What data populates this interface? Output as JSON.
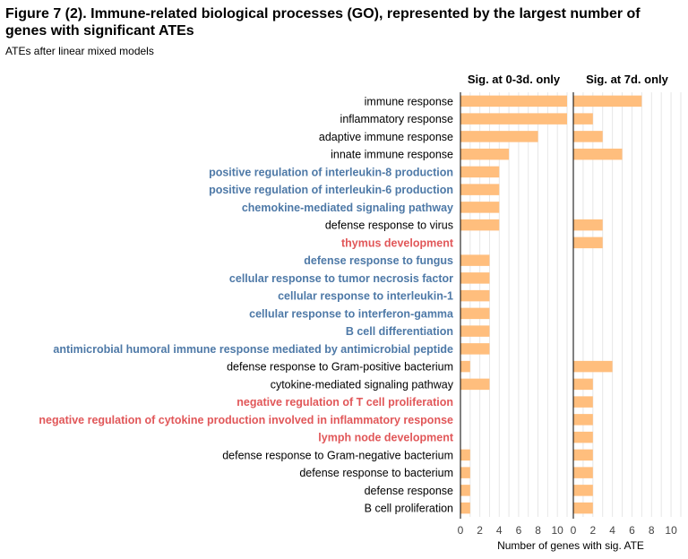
{
  "title": "Figure 7 (2). Immune-related biological processes (GO), represented by the largest number of genes with significant ATEs",
  "subtitle": "ATEs after linear mixed models",
  "chart_data": {
    "type": "bar",
    "orientation": "horizontal",
    "categories": [
      "immune response",
      "inflammatory response",
      "adaptive immune response",
      "innate immune response",
      "positive regulation of interleukin-8 production",
      "positive regulation of interleukin-6 production",
      "chemokine-mediated signaling pathway",
      "defense response to virus",
      "thymus development",
      "defense response to fungus",
      "cellular response to tumor necrosis factor",
      "cellular response to interleukin-1",
      "cellular response to interferon-gamma",
      "B cell differentiation",
      "antimicrobial humoral immune response mediated by antimicrobial peptide",
      "defense response to Gram-positive bacterium",
      "cytokine-mediated signaling pathway",
      "negative regulation of T cell proliferation",
      "negative regulation of cytokine production involved in inflammatory response",
      "lymph node development",
      "defense response to Gram-negative bacterium",
      "defense response to bacterium",
      "defense response",
      "B cell proliferation"
    ],
    "category_styles": [
      "normal",
      "normal",
      "normal",
      "normal",
      "blue",
      "blue",
      "blue",
      "normal",
      "red",
      "blue",
      "blue",
      "blue",
      "blue",
      "blue",
      "blue",
      "normal",
      "normal",
      "red",
      "red",
      "red",
      "normal",
      "normal",
      "normal",
      "normal"
    ],
    "series": [
      {
        "name": "Sig. at 0-3d. only",
        "values": [
          11,
          11,
          8,
          5,
          4,
          4,
          4,
          4,
          0,
          3,
          3,
          3,
          3,
          3,
          3,
          1,
          3,
          0,
          0,
          0,
          1,
          1,
          1,
          1
        ]
      },
      {
        "name": "Sig. at 7d. only",
        "values": [
          7,
          2,
          3,
          5,
          0,
          0,
          0,
          3,
          3,
          0,
          0,
          0,
          0,
          0,
          0,
          4,
          2,
          2,
          2,
          2,
          2,
          2,
          2,
          2
        ]
      }
    ],
    "xlabel": "Number of genes with sig. ATE",
    "ylabel": "",
    "xlim": [
      0,
      11
    ],
    "xticks": [
      0,
      2,
      4,
      6,
      8,
      10
    ],
    "grid": true,
    "bar_color": "#ffbe7d",
    "grid_color": "#e6e6e6",
    "label_colors": {
      "normal": "#000000",
      "blue": "#4e79a7",
      "red": "#e15759"
    }
  }
}
